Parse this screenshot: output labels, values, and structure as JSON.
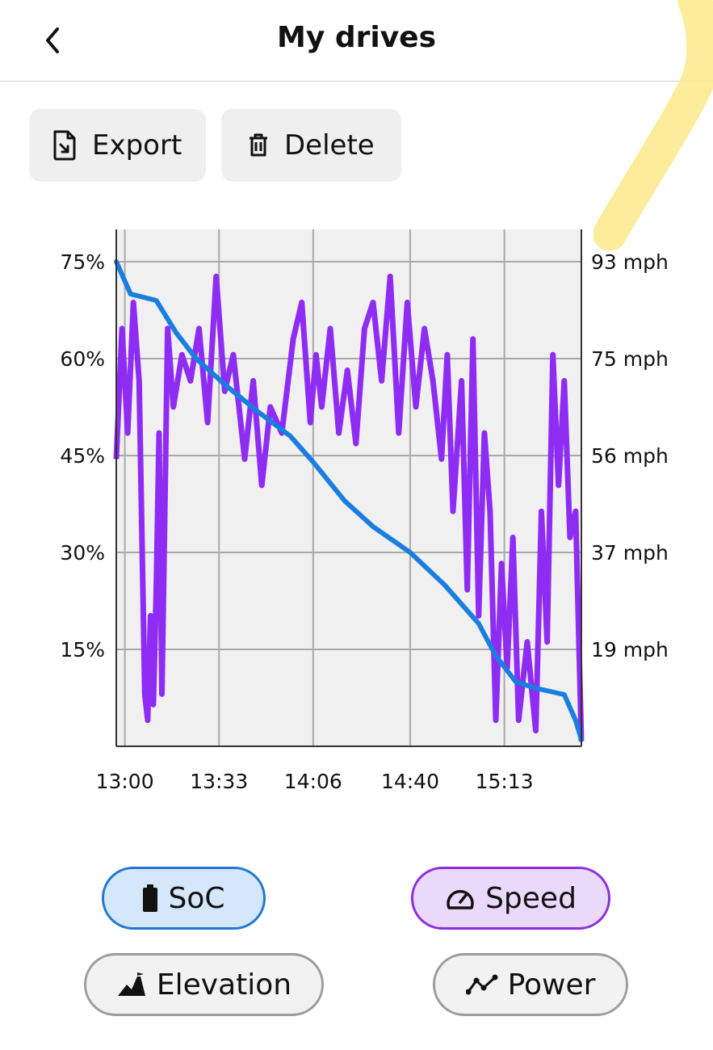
{
  "header": {
    "title": "My drives",
    "back_icon": "chevron-left-icon"
  },
  "actions": {
    "export_label": "Export",
    "export_icon": "file-export-icon",
    "delete_label": "Delete",
    "delete_icon": "trash-icon"
  },
  "chart_data": {
    "type": "line",
    "title": "",
    "xlabel": "",
    "ylabel": "",
    "x_ticks": [
      "13:00",
      "13:33",
      "14:06",
      "14:40",
      "15:13"
    ],
    "x_range": [
      "12:57",
      "15:40"
    ],
    "y_left_ticks": [
      "75%",
      "60%",
      "45%",
      "30%",
      "15%"
    ],
    "y_left_range": [
      0,
      80
    ],
    "y_right_ticks": [
      "93 mph",
      "75 mph",
      "56 mph",
      "37 mph",
      "19 mph"
    ],
    "y_right_range": [
      0,
      99
    ],
    "grid": true,
    "colors": {
      "soc": "#1a7ee0",
      "speed": "#8f2cf3"
    },
    "series": [
      {
        "name": "SoC",
        "axis": "left",
        "x": [
          "12:57",
          "13:02",
          "13:11",
          "13:18",
          "13:25",
          "13:35",
          "13:46",
          "13:58",
          "14:06",
          "14:17",
          "14:27",
          "14:40",
          "14:52",
          "15:04",
          "15:10",
          "15:17",
          "15:24",
          "15:34",
          "15:38",
          "15:40"
        ],
        "values": [
          75,
          70,
          69,
          64,
          60,
          56,
          52,
          48,
          44,
          38,
          34,
          30,
          25,
          19,
          14,
          10,
          9,
          8,
          4,
          1
        ]
      },
      {
        "name": "Speed",
        "axis": "right",
        "x": [
          "12:57",
          "12:59",
          "13:01",
          "13:03",
          "13:05",
          "13:06",
          "13:07",
          "13:08",
          "13:09",
          "13:10",
          "13:11",
          "13:12",
          "13:13",
          "13:14",
          "13:15",
          "13:17",
          "13:20",
          "13:23",
          "13:26",
          "13:29",
          "13:32",
          "13:35",
          "13:38",
          "13:42",
          "13:45",
          "13:48",
          "13:51",
          "13:55",
          "13:59",
          "14:02",
          "14:05",
          "14:07",
          "14:09",
          "14:12",
          "14:15",
          "14:18",
          "14:21",
          "14:24",
          "14:27",
          "14:30",
          "14:33",
          "14:36",
          "14:39",
          "14:42",
          "14:45",
          "14:48",
          "14:51",
          "14:53",
          "14:55",
          "14:58",
          "15:00",
          "15:02",
          "15:04",
          "15:06",
          "15:08",
          "15:10",
          "15:12",
          "15:14",
          "15:16",
          "15:18",
          "15:21",
          "15:24",
          "15:26",
          "15:28",
          "15:30",
          "15:32",
          "15:34",
          "15:36",
          "15:38",
          "15:40"
        ],
        "values": [
          55,
          80,
          60,
          85,
          70,
          40,
          10,
          5,
          25,
          8,
          30,
          60,
          10,
          45,
          80,
          65,
          75,
          70,
          80,
          62,
          90,
          68,
          75,
          55,
          70,
          50,
          65,
          60,
          78,
          85,
          62,
          75,
          65,
          80,
          60,
          72,
          58,
          80,
          85,
          70,
          90,
          60,
          85,
          65,
          80,
          70,
          55,
          75,
          45,
          70,
          30,
          78,
          25,
          60,
          45,
          5,
          35,
          15,
          40,
          5,
          20,
          3,
          45,
          20,
          75,
          50,
          70,
          40,
          45,
          1
        ]
      }
    ]
  },
  "pills": {
    "soc_label": "SoC",
    "soc_icon": "battery-icon",
    "soc_color": "#1f78d1",
    "speed_label": "Speed",
    "speed_icon": "speedometer-icon",
    "speed_color": "#8d2fe0",
    "elevation_label": "Elevation",
    "elevation_icon": "mountain-icon",
    "power_label": "Power",
    "power_icon": "line-chart-icon"
  }
}
